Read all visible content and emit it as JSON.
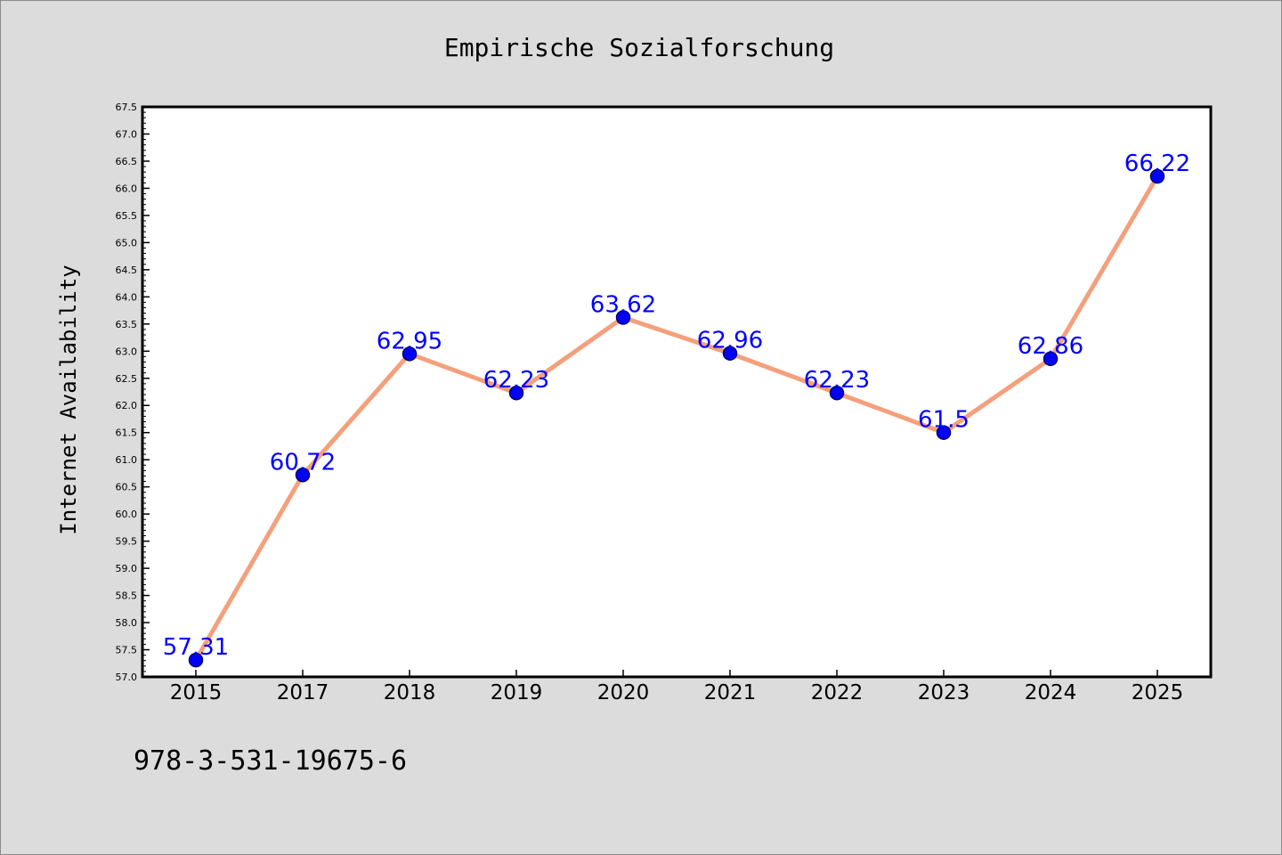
{
  "chart_data": {
    "type": "line",
    "title": "Empirische Sozialforschung",
    "ylabel": "Internet Availability",
    "xlabel": "",
    "categories": [
      "2015",
      "2017",
      "2018",
      "2019",
      "2020",
      "2021",
      "2022",
      "2023",
      "2024",
      "2025"
    ],
    "series": [
      {
        "values": [
          57.31,
          60.72,
          62.95,
          62.23,
          63.62,
          62.96,
          62.23,
          61.5,
          62.86,
          66.22
        ],
        "labels": [
          "57.31",
          "60.72",
          "62.95",
          "62.23",
          "63.62",
          "62.96",
          "62.23",
          "61.5",
          "62.86",
          "66.22"
        ]
      }
    ],
    "ylim": [
      57.0,
      67.5
    ],
    "yticks": [
      "57.0",
      "57.5",
      "58.0",
      "58.5",
      "59.0",
      "59.5",
      "60.0",
      "60.5",
      "61.0",
      "61.5",
      "62.0",
      "62.5",
      "63.0",
      "63.5",
      "64.0",
      "64.5",
      "65.0",
      "65.5",
      "66.0",
      "66.5",
      "67.0",
      "67.5"
    ],
    "grid": false,
    "legend": "none",
    "colors": {
      "line": "#f4a07c",
      "marker": "#0000ff",
      "marker_edge": "#000066",
      "data_label": "#0000ff",
      "background": "#dcdcdc",
      "plot_background": "#ffffff"
    }
  },
  "footer": {
    "isbn": "978-3-531-19675-6"
  }
}
